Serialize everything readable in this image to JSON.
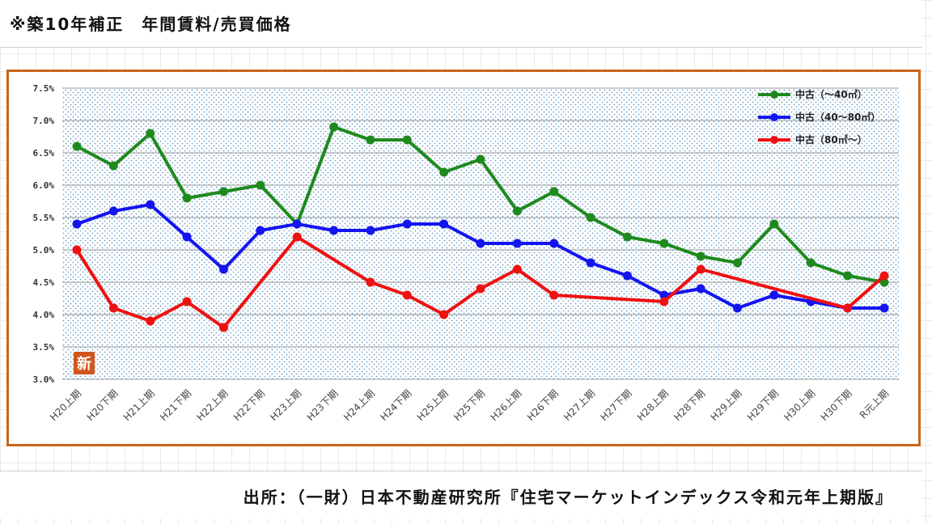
{
  "title": "※築10年補正　年間賃料/売買価格",
  "source": "出所：（一財）日本不動産研究所『住宅マーケットインデックス令和元年上期版』",
  "watermark": "新",
  "chart_data": {
    "type": "line",
    "categories": [
      "H20上期",
      "H20下期",
      "H21上期",
      "H21下期",
      "H22上期",
      "H22下期",
      "H23上期",
      "H23下期",
      "H24上期",
      "H24下期",
      "H25上期",
      "H25下期",
      "H26上期",
      "H26下期",
      "H27上期",
      "H27下期",
      "H28上期",
      "H28下期",
      "H29上期",
      "H29下期",
      "H30上期",
      "H30下期",
      "R元上期"
    ],
    "yticks": [
      "7.5%",
      "7.0%",
      "6.5%",
      "6.0%",
      "5.5%",
      "5.0%",
      "4.5%",
      "4.0%",
      "3.5%",
      "3.0%"
    ],
    "ylim": [
      3.0,
      7.5
    ],
    "grid": true,
    "legend_position": "top-right",
    "series": [
      {
        "name": "中古（～40㎡）",
        "color": "#1e8a1e",
        "values": [
          6.6,
          6.3,
          6.8,
          5.8,
          5.9,
          6.0,
          5.4,
          6.9,
          6.7,
          6.7,
          6.2,
          6.4,
          5.6,
          5.9,
          5.5,
          5.2,
          5.1,
          4.9,
          4.8,
          5.4,
          4.8,
          4.6,
          4.5
        ]
      },
      {
        "name": "中古（40～80㎡）",
        "color": "#1414f0",
        "values": [
          5.4,
          5.6,
          5.7,
          5.2,
          4.7,
          5.3,
          5.4,
          5.3,
          5.3,
          5.4,
          5.4,
          5.1,
          5.1,
          5.1,
          4.8,
          4.6,
          4.3,
          4.4,
          4.1,
          4.3,
          4.2,
          4.1,
          4.1
        ]
      },
      {
        "name": "中古（80㎡～）",
        "color": "#ee1111",
        "values": [
          5.0,
          4.1,
          3.9,
          4.2,
          3.8,
          null,
          5.2,
          null,
          4.5,
          4.3,
          4.0,
          4.4,
          4.7,
          4.3,
          null,
          null,
          4.2,
          4.7,
          null,
          null,
          null,
          4.1,
          4.6
        ]
      }
    ]
  }
}
